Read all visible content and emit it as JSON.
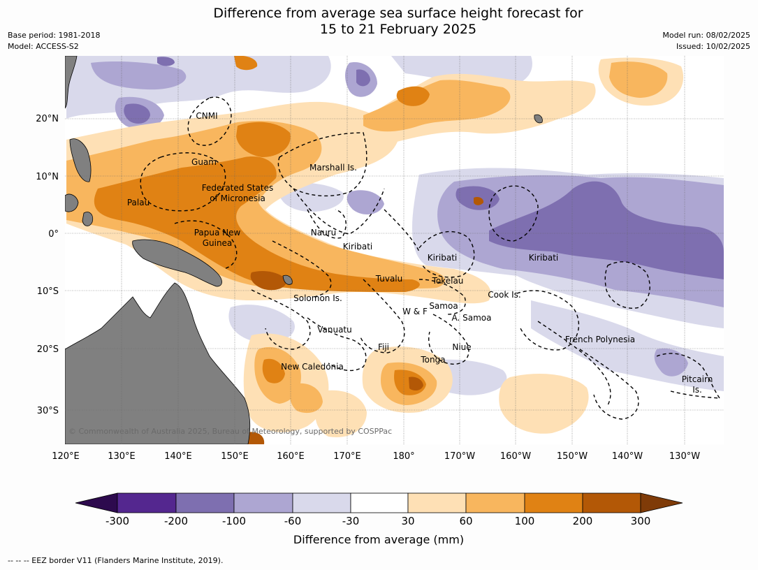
{
  "title": {
    "line1": "Difference from average sea surface height forecast for",
    "line2": "15 to 21 February 2025"
  },
  "meta_left": {
    "base_period": "Base period: 1981-2018",
    "model": "Model: ACCESS-S2"
  },
  "meta_right": {
    "model_run": "Model run: 08/02/2025",
    "issued": "Issued: 10/02/2025"
  },
  "map": {
    "lat_labels": [
      "20°N",
      "10°N",
      "0°",
      "10°S",
      "20°S",
      "30°S"
    ],
    "lon_labels": [
      "120°E",
      "130°E",
      "140°E",
      "150°E",
      "160°E",
      "170°E",
      "180°",
      "170°W",
      "160°W",
      "150°W",
      "140°W",
      "130°W"
    ],
    "places": {
      "cnmi": "CNMI",
      "guam": "Guam",
      "marshall": "Marshall Is.",
      "fsm1": "Federated States",
      "fsm2": "of Micronesia",
      "palau": "Palau",
      "png1": "Papua New",
      "png2": "Guinea",
      "nauru": "Nauru",
      "kiribati_w": "Kiribati",
      "kiribati_c": "Kiribati",
      "kiribati_e": "Kiribati",
      "tuvalu": "Tuvalu",
      "tokelau": "Tokelau",
      "solomon": "Solomon Is.",
      "cook": "Cook Is.",
      "samoa": "Samoa",
      "wf": "W & F",
      "asamoa": "A. Samoa",
      "vanuatu": "Vanuatu",
      "fiji": "Fiji",
      "niue": "Niue",
      "tonga": "Tonga",
      "fp": "French Polynesia",
      "newcal": "New Caledonia",
      "pitcairn1": "Pitcairn",
      "pitcairn2": "Is."
    },
    "copyright": "© Commonwealth of Australia 2025, Bureau of Meteorology, supported by COSPPac",
    "colors": {
      "land": "#808080",
      "below_300": "#2d0a4e",
      "n300_200": "#54278f",
      "n200_100": "#7e6fb0",
      "n100_60": "#ada6d2",
      "n60_30": "#d9d9eb",
      "n30_30": "#ffffff",
      "p30_60": "#fee0b5",
      "p60_100": "#f8b65e",
      "p100_200": "#e08214",
      "p200_300": "#b35806",
      "above_300": "#7f3b08"
    }
  },
  "colorbar": {
    "ticks": [
      "-300",
      "-200",
      "-100",
      "-60",
      "-30",
      "30",
      "60",
      "100",
      "200",
      "300"
    ],
    "label": "Difference from average (mm)"
  },
  "footnote": "-- -- -- EEZ border V11 (Flanders Marine Institute, 2019)."
}
